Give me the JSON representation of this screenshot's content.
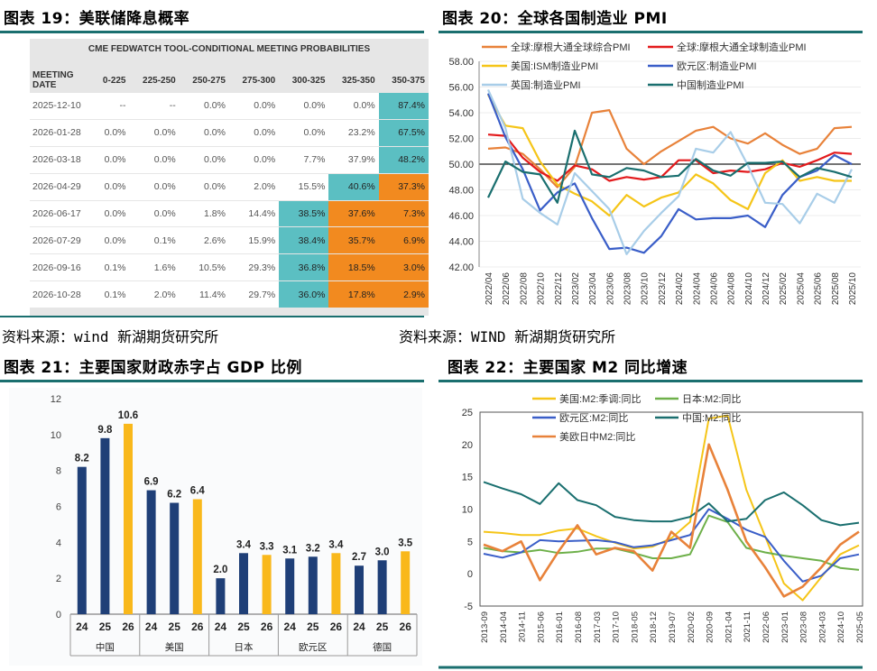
{
  "panel19": {
    "title": "图表 19：美联储降息概率",
    "source": "资料来源：wind 新湖期货研究所",
    "chart_data": {
      "type": "table",
      "title": "CME FEDWATCH TOOL-CONDITIONAL MEETING PROBABILITIES",
      "columns": [
        "MEETING DATE",
        "0-225",
        "225-250",
        "250-275",
        "275-300",
        "300-325",
        "325-350",
        "350-375"
      ],
      "rows": [
        [
          "2025-12-10",
          "--",
          "--",
          "0.0%",
          "0.0%",
          "0.0%",
          "0.0%",
          "87.4%"
        ],
        [
          "2026-01-28",
          "0.0%",
          "0.0%",
          "0.0%",
          "0.0%",
          "0.0%",
          "23.2%",
          "67.5%"
        ],
        [
          "2026-03-18",
          "0.0%",
          "0.0%",
          "0.0%",
          "0.0%",
          "7.7%",
          "37.9%",
          "48.2%"
        ],
        [
          "2026-04-29",
          "0.0%",
          "0.0%",
          "0.0%",
          "2.0%",
          "15.5%",
          "40.6%",
          "37.3%"
        ],
        [
          "2026-06-17",
          "0.0%",
          "0.0%",
          "1.8%",
          "14.4%",
          "38.5%",
          "37.6%",
          "7.3%"
        ],
        [
          "2026-07-29",
          "0.0%",
          "0.1%",
          "2.6%",
          "15.9%",
          "38.4%",
          "35.7%",
          "6.9%"
        ],
        [
          "2026-09-16",
          "0.1%",
          "1.6%",
          "10.5%",
          "29.3%",
          "36.8%",
          "18.5%",
          "3.0%"
        ],
        [
          "2026-10-28",
          "0.1%",
          "2.0%",
          "11.4%",
          "29.7%",
          "36.0%",
          "17.8%",
          "2.9%"
        ]
      ],
      "highlight": [
        [
          null,
          null,
          null,
          null,
          null,
          null,
          null,
          "teal"
        ],
        [
          null,
          null,
          null,
          null,
          null,
          null,
          null,
          "teal"
        ],
        [
          null,
          null,
          null,
          null,
          null,
          null,
          null,
          "teal"
        ],
        [
          null,
          null,
          null,
          null,
          null,
          null,
          "teal",
          "orange"
        ],
        [
          null,
          null,
          null,
          null,
          null,
          "teal",
          "orange",
          "orange"
        ],
        [
          null,
          null,
          null,
          null,
          null,
          "teal",
          "orange",
          "orange"
        ],
        [
          null,
          null,
          null,
          null,
          null,
          "teal",
          "orange",
          "orange"
        ],
        [
          null,
          null,
          null,
          null,
          null,
          "teal",
          "orange",
          "orange"
        ]
      ],
      "colors": {
        "teal": "#5bbfc2",
        "orange": "#f28a1f"
      }
    }
  },
  "panel20": {
    "title": "图表 20：全球各国制造业 PMI",
    "source": "资料来源：WIND 新湖期货研究所",
    "chart_data": {
      "type": "line",
      "ylim": [
        42,
        58
      ],
      "yticks": [
        "58.00",
        "56.00",
        "54.00",
        "52.00",
        "50.00",
        "48.00",
        "46.00",
        "44.00",
        "42.00"
      ],
      "x": [
        "2022/04",
        "2022/06",
        "2022/08",
        "2022/10",
        "2022/12",
        "2023/02",
        "2023/04",
        "2023/06",
        "2023/08",
        "2023/10",
        "2023/12",
        "2024/02",
        "2024/04",
        "2024/06",
        "2024/08",
        "2024/10",
        "2024/12",
        "2025/02",
        "2025/04",
        "2025/06",
        "2025/08",
        "2025/10"
      ],
      "series": [
        {
          "name": "全球:摩根大通全球综合PMI",
          "color": "#e8823a",
          "values": [
            51.2,
            51.3,
            50.8,
            49.6,
            48.2,
            49.8,
            54.0,
            54.2,
            51.2,
            50.0,
            51.0,
            51.8,
            52.6,
            52.9,
            52.0,
            51.6,
            52.4,
            51.5,
            50.8,
            51.2,
            52.8,
            52.9
          ]
        },
        {
          "name": "全球:摩根大通全球制造业PMI",
          "color": "#e31a1c",
          "values": [
            52.3,
            52.2,
            50.5,
            49.4,
            48.7,
            49.9,
            49.6,
            48.7,
            49.0,
            48.8,
            49.0,
            50.3,
            50.3,
            49.3,
            49.5,
            49.4,
            49.6,
            50.1,
            49.8,
            50.3,
            50.9,
            50.8
          ]
        },
        {
          "name": "美国:ISM制造业PMI",
          "color": "#f5c518",
          "values": [
            55.4,
            53.0,
            52.8,
            50.2,
            48.4,
            47.7,
            47.1,
            46.0,
            47.6,
            46.7,
            47.4,
            47.8,
            49.2,
            48.5,
            47.2,
            46.5,
            49.3,
            50.3,
            48.7,
            49.0,
            48.7,
            48.7
          ]
        },
        {
          "name": "欧元区:制造业PMI",
          "color": "#3a5ec8",
          "values": [
            55.5,
            52.1,
            49.6,
            46.4,
            47.8,
            48.5,
            45.8,
            43.4,
            43.5,
            43.1,
            44.4,
            46.5,
            45.7,
            45.8,
            45.8,
            46.0,
            45.1,
            47.6,
            49.0,
            49.5,
            50.7,
            50.0
          ]
        },
        {
          "name": "英国:制造业PMI",
          "color": "#a8cde8",
          "values": [
            55.8,
            52.8,
            47.3,
            46.2,
            45.3,
            49.3,
            47.9,
            46.5,
            43.0,
            44.8,
            46.2,
            47.5,
            51.2,
            50.9,
            52.5,
            49.9,
            47.0,
            46.9,
            45.4,
            47.7,
            47.0,
            49.6
          ]
        },
        {
          "name": "中国制造业PMI",
          "color": "#1a6f6f",
          "values": [
            47.4,
            50.2,
            49.4,
            49.2,
            47.0,
            52.6,
            49.2,
            49.0,
            49.7,
            49.5,
            49.0,
            49.1,
            50.4,
            49.5,
            49.1,
            50.1,
            50.1,
            50.2,
            49.0,
            49.7,
            49.4,
            49.0
          ]
        }
      ]
    }
  },
  "panel21": {
    "title": "图表 21：主要国家财政赤字占 GDP 比例",
    "chart_data": {
      "type": "bar",
      "ylim": [
        0,
        12
      ],
      "yticks": [
        "0",
        "2",
        "4",
        "6",
        "8",
        "10",
        "12"
      ],
      "groups": [
        "中国",
        "美国",
        "日本",
        "欧元区",
        "德国"
      ],
      "year_labels": [
        "24",
        "25",
        "26"
      ],
      "values": [
        [
          8.2,
          9.8,
          10.6
        ],
        [
          6.9,
          6.2,
          6.4
        ],
        [
          2.0,
          3.4,
          3.3
        ],
        [
          3.1,
          3.2,
          3.4
        ],
        [
          2.7,
          3.0,
          3.5
        ]
      ],
      "labels": [
        [
          "8.2",
          "9.8",
          "10.6"
        ],
        [
          "6.9",
          "6.2",
          "6.4"
        ],
        [
          "2.0",
          "3.4",
          "3.3"
        ],
        [
          "3.1",
          "3.2",
          "3.4"
        ],
        [
          "2.7",
          "3.0",
          "3.5"
        ]
      ],
      "colors": {
        "past": "#1f3f77",
        "future": "#f9b81b"
      }
    }
  },
  "panel22": {
    "title": "图表 22：主要国家 M2 同比增速",
    "chart_data": {
      "type": "line",
      "ylim": [
        -5,
        25
      ],
      "yticks": [
        "25",
        "20",
        "15",
        "10",
        "5",
        "0",
        "-5"
      ],
      "x": [
        "2013-09",
        "2014-04",
        "2014-11",
        "2015-06",
        "2016-01",
        "2016-08",
        "2017-03",
        "2017-10",
        "2018-05",
        "2018-12",
        "2019-07",
        "2020-02",
        "2020-09",
        "2021-04",
        "2021-11",
        "2022-06",
        "2023-01",
        "2023-08",
        "2024-03",
        "2024-10",
        "2025-05"
      ],
      "series": [
        {
          "name": "美国:M2:季调:同比",
          "color": "#f5c518",
          "values": [
            6.5,
            6.3,
            6.0,
            6.0,
            6.7,
            7.0,
            5.8,
            4.8,
            3.9,
            4.2,
            5.5,
            8.0,
            24.0,
            24.5,
            13.0,
            5.8,
            -1.5,
            -4.1,
            -0.5,
            3.0,
            4.4
          ]
        },
        {
          "name": "日本:M2:同比",
          "color": "#6eb04a",
          "values": [
            4.0,
            3.5,
            3.3,
            3.7,
            3.2,
            3.4,
            3.9,
            3.9,
            3.2,
            2.4,
            2.4,
            3.0,
            9.0,
            8.0,
            4.0,
            3.3,
            2.8,
            2.4,
            2.0,
            0.9,
            0.6
          ]
        },
        {
          "name": "欧元区:M2:同比",
          "color": "#3a5ec8",
          "values": [
            3.1,
            2.5,
            3.3,
            5.2,
            5.0,
            5.1,
            5.2,
            4.9,
            4.1,
            4.4,
            5.2,
            6.0,
            10.0,
            8.5,
            6.8,
            5.7,
            2.0,
            -1.2,
            -0.3,
            2.4,
            3.0
          ]
        },
        {
          "name": "中国:M2:同比",
          "color": "#1a6f6f",
          "values": [
            14.2,
            13.2,
            12.3,
            10.8,
            14.0,
            11.4,
            10.6,
            8.8,
            8.3,
            8.1,
            8.1,
            8.8,
            10.9,
            8.1,
            8.5,
            11.4,
            12.6,
            10.6,
            8.3,
            7.5,
            7.9
          ]
        },
        {
          "name": "美欧日中M2:同比",
          "color": "#e8823a",
          "values": [
            4.5,
            3.5,
            5.0,
            -1.0,
            3.5,
            7.5,
            3.0,
            4.0,
            3.5,
            0.5,
            6.5,
            4.0,
            20.0,
            13.0,
            5.0,
            1.0,
            -3.5,
            -2.0,
            1.0,
            4.5,
            6.5
          ]
        }
      ]
    }
  }
}
